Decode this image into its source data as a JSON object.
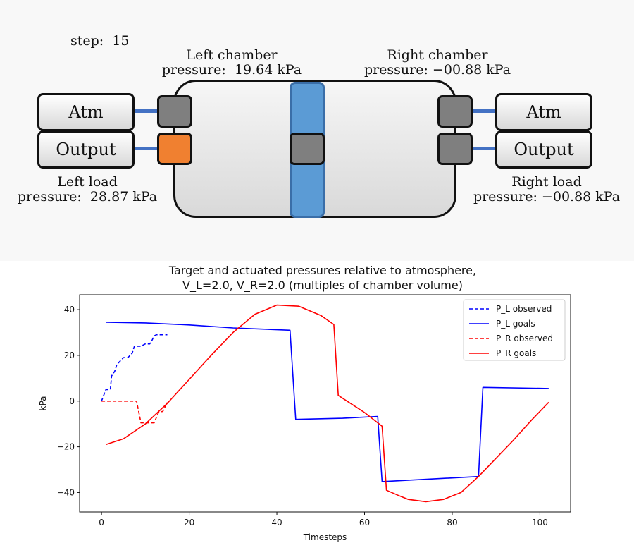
{
  "sim": {
    "step_text": "step:  15",
    "left_chamber_label": "Left chamber\npressure:  19.64 kPa",
    "right_chamber_label": "Right chamber\npressure: −00.88 kPa",
    "left_load_label": "Left load\npressure:  28.87 kPa",
    "right_load_label": "Right load\npressure: −00.88 kPa",
    "left_atm_label": "Atm",
    "left_output_label": "Output",
    "right_atm_label": "Atm",
    "right_output_label": "Output",
    "colors": {
      "pipe": "#4472c4",
      "valve_closed": "#7f7f7f",
      "valve_active": "#f08030",
      "piston": "#5b9bd5"
    }
  },
  "chart_data": {
    "type": "line",
    "title": "Target and actuated pressures relative to atmosphere,\nV_L=2.0,     V_R=2.0 (multiples of chamber volume)",
    "xlabel": "Timesteps",
    "ylabel": "kPa",
    "xlim": [
      -5,
      107
    ],
    "ylim": [
      -48.5,
      46.5
    ],
    "xticks": [
      0,
      20,
      40,
      60,
      80,
      100
    ],
    "yticks": [
      -40,
      -20,
      0,
      20,
      40
    ],
    "legend": "top-right",
    "series": [
      {
        "name": "P_L observed",
        "color": "#0000ff",
        "dash": true,
        "x": [
          0,
          1,
          2,
          2.3,
          3,
          3.5,
          5,
          6,
          7,
          7.5,
          9,
          10,
          11,
          11.5,
          12,
          12.5,
          14,
          15
        ],
        "y": [
          0,
          5,
          5,
          11,
          13,
          16,
          19,
          19,
          21,
          24,
          24,
          25,
          25,
          26.5,
          28.5,
          29,
          29,
          29
        ]
      },
      {
        "name": "P_L goals",
        "color": "#0000ff",
        "dash": false,
        "x": [
          1,
          10,
          20,
          30,
          43,
          44.3,
          55,
          63,
          64,
          86,
          87,
          102
        ],
        "y": [
          34.5,
          34.2,
          33.3,
          32,
          31,
          -8,
          -7.5,
          -6.7,
          -35.2,
          -33,
          6,
          5.5
        ]
      },
      {
        "name": "P_R observed",
        "color": "#ff0000",
        "dash": true,
        "x": [
          0,
          8,
          9,
          12,
          13,
          14,
          15
        ],
        "y": [
          0,
          0,
          -9.5,
          -9.5,
          -5,
          -4.5,
          -0.5
        ]
      },
      {
        "name": "P_R goals",
        "color": "#ff0000",
        "dash": false,
        "x": [
          1,
          5,
          10,
          15,
          20,
          25,
          30,
          35,
          40,
          45,
          50,
          53,
          54,
          60,
          64,
          65,
          68,
          70,
          74,
          78,
          82,
          86,
          90,
          94,
          98,
          102
        ],
        "y": [
          -19,
          -16.5,
          -10,
          -1,
          9.5,
          20,
          30,
          38,
          42,
          41.5,
          37.5,
          33.5,
          2.5,
          -5,
          -11,
          -39,
          -41.5,
          -43,
          -44,
          -43,
          -40,
          -33,
          -25,
          -17,
          -8.5,
          -0.5
        ]
      }
    ]
  }
}
